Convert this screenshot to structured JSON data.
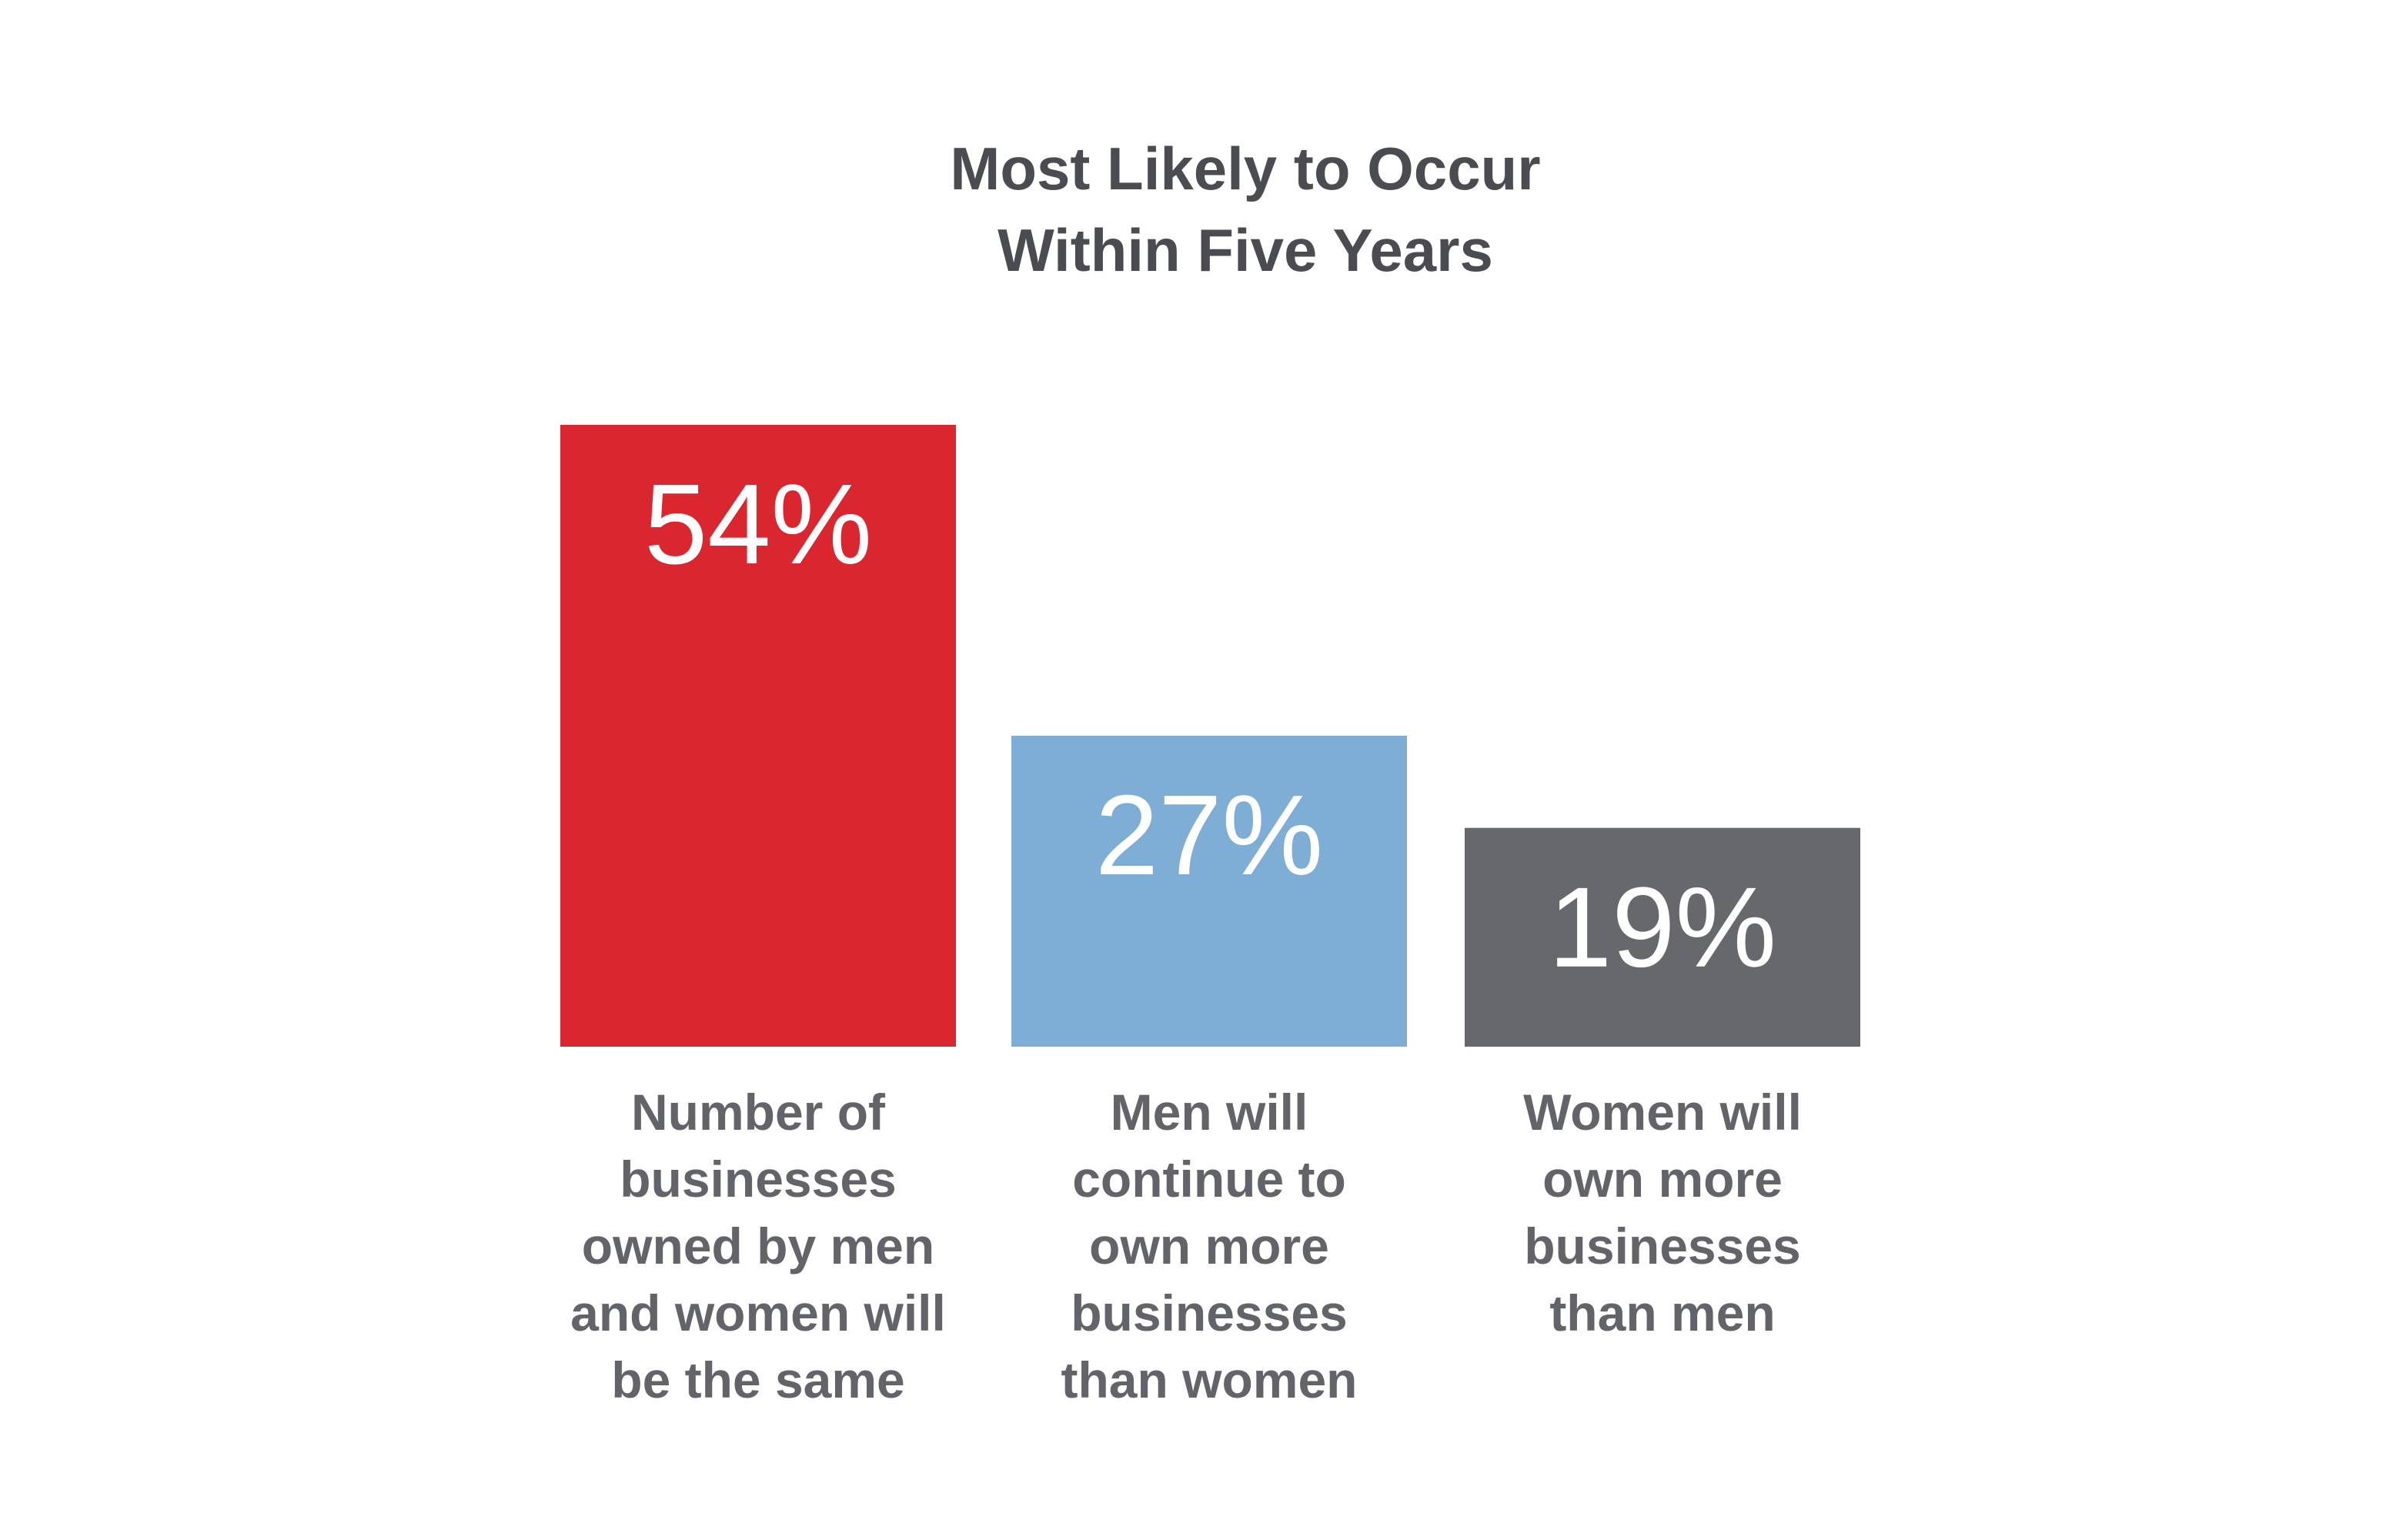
{
  "chart_data": {
    "type": "bar",
    "title_lines": [
      "Most Likely to Occur",
      "Within Five Years"
    ],
    "categories": [
      [
        "Number of",
        "businesses",
        "owned by men",
        "and women will",
        "be the same"
      ],
      [
        "Men will",
        "continue to",
        "own more",
        "businesses",
        "than women"
      ],
      [
        "Women will",
        "own more",
        "businesses",
        "than men"
      ]
    ],
    "values": [
      54,
      27,
      19
    ],
    "value_labels": [
      "54%",
      "27%",
      "19%"
    ],
    "colors": [
      "#d9262f",
      "#7eadd5",
      "#67686c"
    ],
    "ylim": [
      0,
      54
    ],
    "grid": false,
    "legend": "none"
  }
}
